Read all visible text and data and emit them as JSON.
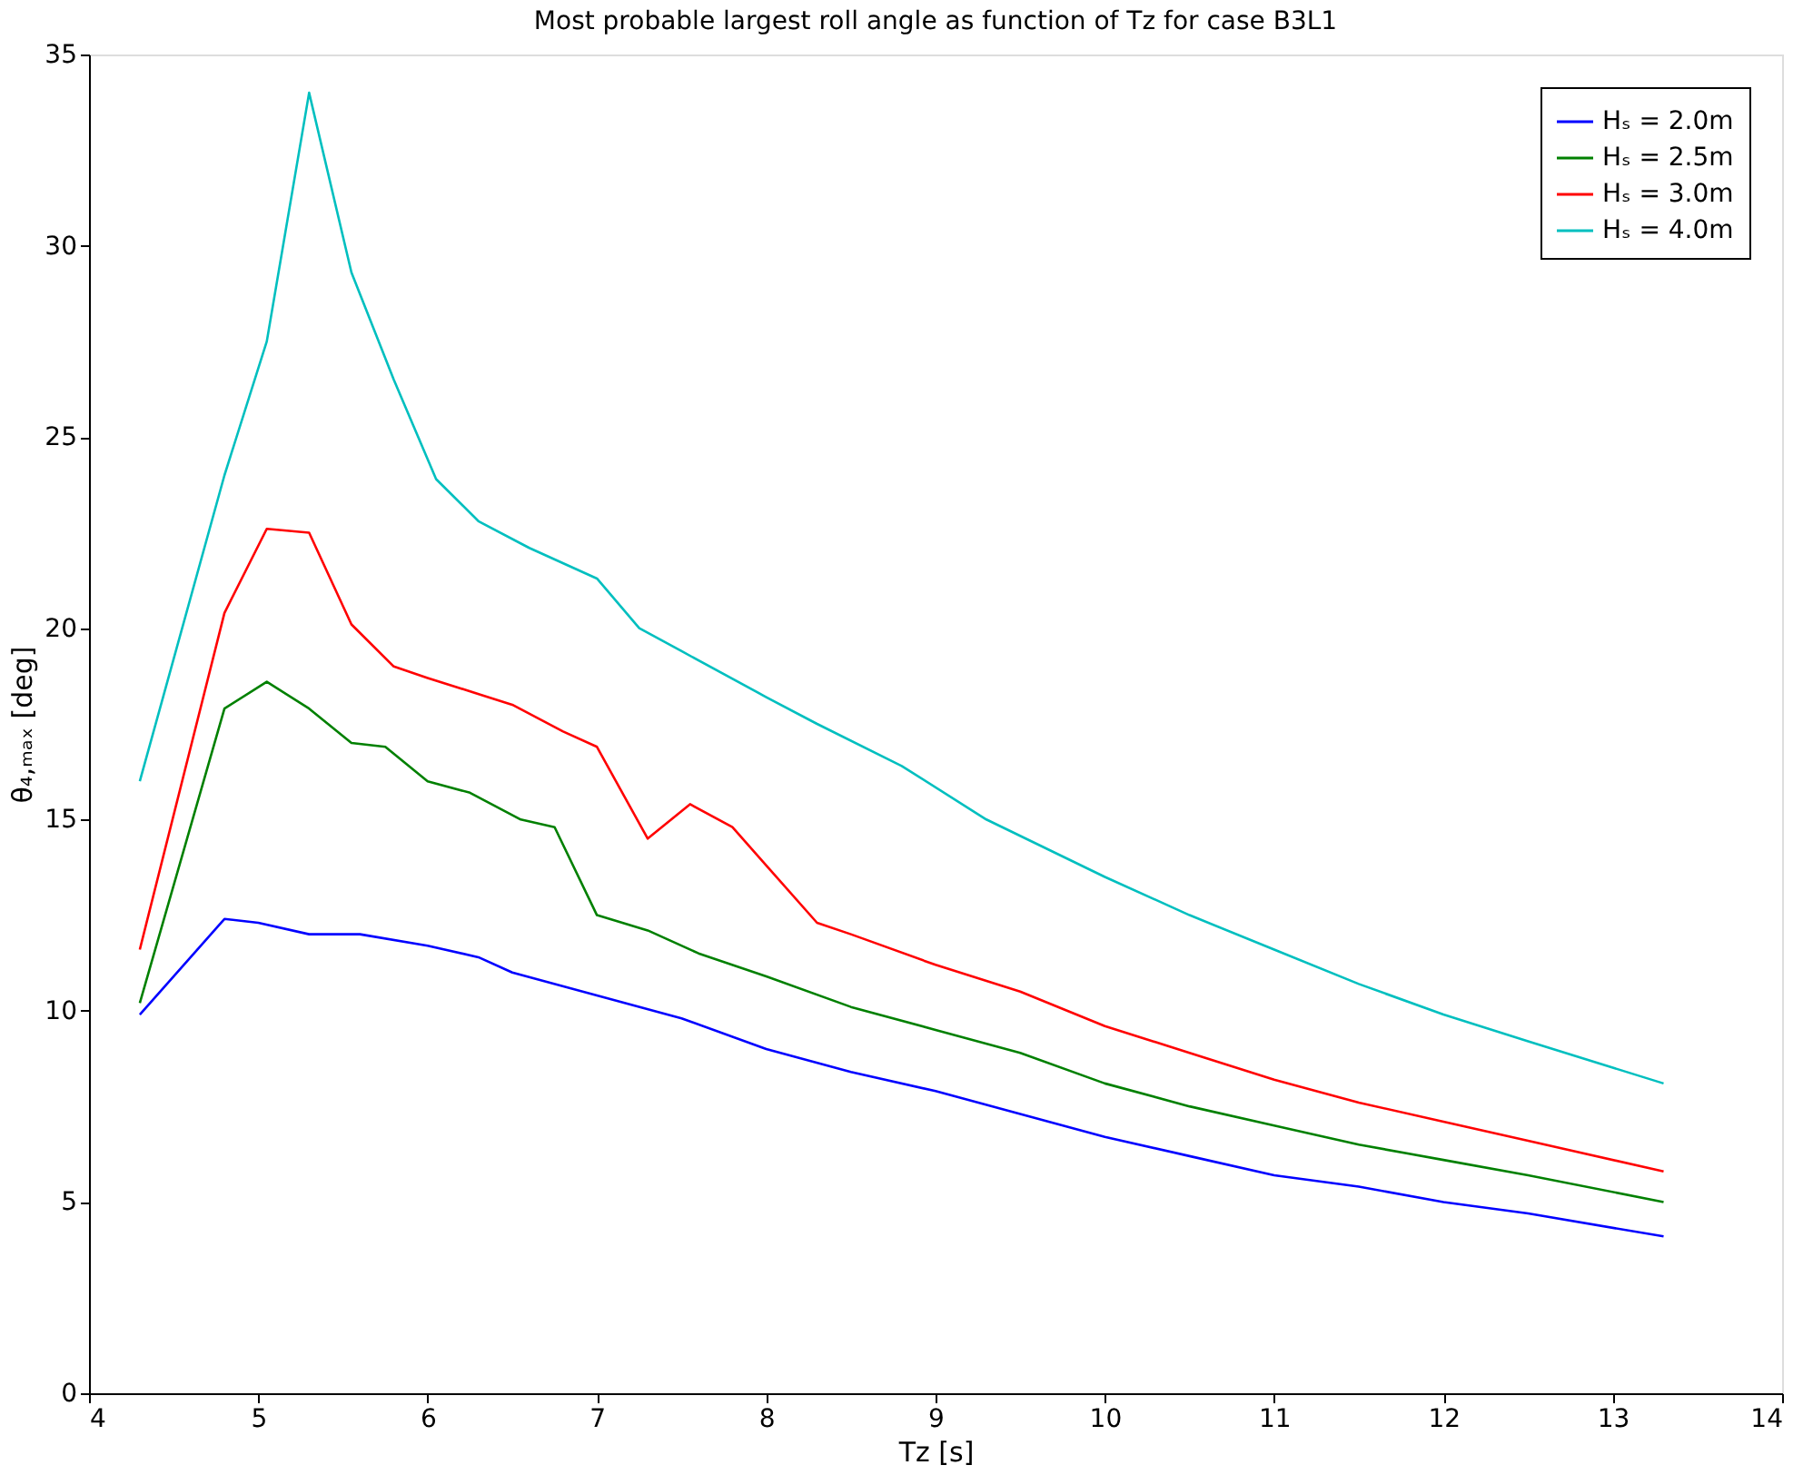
{
  "chart_data": {
    "type": "line",
    "title": "Most probable largest roll angle as function of Tz for case B3L1",
    "xlabel": "Tz [s]",
    "ylabel": "θ₄,ₘₐₓ [deg]",
    "xlim": [
      4,
      14
    ],
    "xticks": [
      4,
      5,
      6,
      7,
      8,
      9,
      10,
      11,
      12,
      13,
      14
    ],
    "ylim": [
      0,
      35
    ],
    "yticks": [
      0,
      5,
      10,
      15,
      20,
      25,
      30,
      35
    ],
    "grid": false,
    "legend": "top right",
    "marker": "none",
    "line_style": "solid",
    "series": [
      {
        "name": "Hₛ = 2.0m",
        "color": "#0000ff",
        "x": [
          4.3,
          4.8,
          5.0,
          5.3,
          5.6,
          6.0,
          6.3,
          6.5,
          7.0,
          7.5,
          8.0,
          8.5,
          9.0,
          9.5,
          10,
          10.5,
          11,
          11.5,
          12,
          12.5,
          13.3
        ],
        "values": [
          9.9,
          12.4,
          12.3,
          12.0,
          12.0,
          11.7,
          11.4,
          11.0,
          10.4,
          9.8,
          9.0,
          8.4,
          7.9,
          7.3,
          6.7,
          6.2,
          5.7,
          5.4,
          5.0,
          4.7,
          4.1
        ]
      },
      {
        "name": "Hₛ = 2.5m",
        "color": "#008000",
        "x": [
          4.3,
          4.8,
          5.05,
          5.3,
          5.55,
          5.75,
          6.0,
          6.25,
          6.55,
          6.75,
          7.0,
          7.3,
          7.6,
          8.0,
          8.5,
          9.0,
          9.5,
          10,
          10.5,
          11,
          11.5,
          12,
          12.5,
          13.3
        ],
        "values": [
          10.2,
          17.9,
          18.6,
          17.9,
          17.0,
          16.9,
          16.0,
          15.7,
          15.0,
          14.8,
          12.5,
          12.1,
          11.5,
          10.9,
          10.1,
          9.5,
          8.9,
          8.1,
          7.5,
          7.0,
          6.5,
          6.1,
          5.7,
          5.0
        ]
      },
      {
        "name": "Hₛ = 3.0m",
        "color": "#ff0000",
        "x": [
          4.3,
          4.8,
          5.05,
          5.3,
          5.55,
          5.8,
          6.0,
          6.5,
          6.8,
          7.0,
          7.3,
          7.55,
          7.8,
          8.0,
          8.3,
          8.5,
          9.0,
          9.5,
          10,
          10.5,
          11,
          11.5,
          12,
          12.5,
          13.3
        ],
        "values": [
          11.6,
          20.4,
          22.6,
          22.5,
          20.1,
          19.0,
          18.7,
          18.0,
          17.3,
          16.9,
          14.5,
          15.4,
          14.8,
          13.8,
          12.3,
          12.0,
          11.2,
          10.5,
          9.6,
          8.9,
          8.2,
          7.6,
          7.1,
          6.6,
          5.8
        ]
      },
      {
        "name": "Hₛ = 4.0m",
        "color": "#00bfbf",
        "x": [
          4.3,
          4.8,
          5.05,
          5.3,
          5.55,
          5.8,
          6.05,
          6.3,
          6.6,
          7.0,
          7.25,
          7.5,
          8.0,
          8.3,
          8.8,
          9.3,
          10,
          10.5,
          11,
          11.5,
          12,
          12.5,
          13.3
        ],
        "values": [
          16.0,
          24.0,
          27.5,
          34.0,
          29.3,
          26.5,
          23.9,
          22.8,
          22.1,
          21.3,
          20.0,
          19.4,
          18.2,
          17.5,
          16.4,
          15.0,
          13.5,
          12.5,
          11.6,
          10.7,
          9.9,
          9.2,
          8.1
        ]
      }
    ]
  }
}
